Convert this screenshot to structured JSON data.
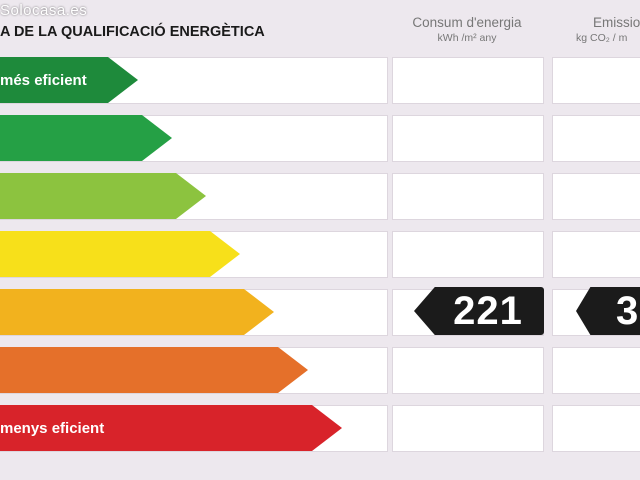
{
  "watermark": "Solocasa.es",
  "title": "A DE LA QUALIFICACIÓ ENERGÈTICA",
  "columns": {
    "consum": {
      "heading": "Consum d'energia",
      "unit": "kWh /m² any"
    },
    "emissions": {
      "heading": "Emissio",
      "unit": "kg CO₂ / m"
    }
  },
  "bars": [
    {
      "label": "més eficient",
      "color": "#1e8a3b"
    },
    {
      "label": "",
      "color": "#25a045"
    },
    {
      "label": "",
      "color": "#8cc33f"
    },
    {
      "label": "",
      "color": "#f7e01a"
    },
    {
      "label": "",
      "color": "#f2b21e"
    },
    {
      "label": "",
      "color": "#e5702a"
    },
    {
      "label": "menys eficient",
      "color": "#d8232a"
    }
  ],
  "rating": {
    "consum_value": "221",
    "emissions_value": "3"
  }
}
